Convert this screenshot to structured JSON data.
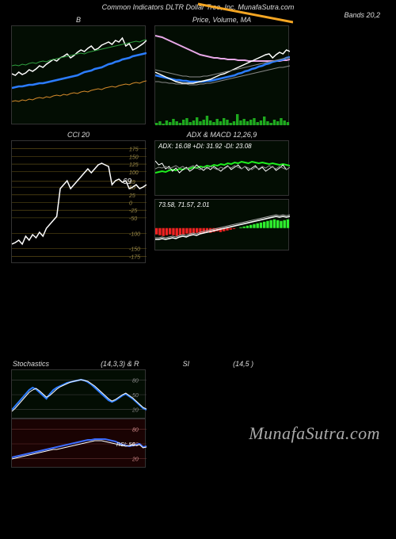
{
  "header": "Common Indicators DLTR Dollar Tree, Inc. MunafaSutra.com",
  "watermark": "MunafaSutra.com",
  "top_right_label": "Bands 20,2",
  "panels": {
    "b_panel": {
      "title": "B",
      "w": 170,
      "h": 125,
      "bg": "#030d03",
      "series": {
        "white": {
          "color": "#ffffff",
          "width": 1.5,
          "pts": [
            60,
            62,
            58,
            61,
            59,
            55,
            57,
            54,
            50,
            52,
            48,
            45,
            42,
            44,
            40,
            38,
            35,
            40,
            37,
            33,
            30,
            32,
            28,
            25,
            30,
            28,
            24,
            22,
            20,
            23,
            18,
            20,
            15,
            25,
            22,
            30,
            28,
            25,
            22,
            18
          ]
        },
        "blue": {
          "color": "#2b7cff",
          "width": 2.5,
          "pts": [
            78,
            77,
            76,
            76,
            75,
            74,
            74,
            73,
            72,
            72,
            71,
            70,
            69,
            68,
            67,
            66,
            65,
            64,
            63,
            62,
            60,
            58,
            57,
            56,
            54,
            53,
            52,
            50,
            48,
            47,
            45,
            44,
            42,
            41,
            40,
            38,
            37,
            36,
            35,
            34
          ]
        },
        "green": {
          "color": "#2e9e3e",
          "width": 1,
          "pts": [
            50,
            49,
            50,
            48,
            49,
            47,
            46,
            47,
            45,
            44,
            45,
            43,
            42,
            41,
            40,
            39,
            38,
            37,
            36,
            35,
            34,
            35,
            33,
            32,
            31,
            30,
            29,
            28,
            27,
            26,
            25,
            24,
            23,
            22,
            21,
            20,
            19,
            20,
            18,
            17
          ]
        },
        "orange": {
          "color": "#d48a2a",
          "width": 1,
          "pts": [
            95,
            94,
            95,
            93,
            94,
            92,
            93,
            91,
            90,
            91,
            89,
            90,
            88,
            87,
            88,
            86,
            87,
            85,
            84,
            85,
            83,
            82,
            83,
            81,
            80,
            79,
            80,
            78,
            77,
            76,
            77,
            75,
            74,
            73,
            74,
            72,
            71,
            72,
            70,
            69
          ]
        }
      }
    },
    "price_panel": {
      "title": "Price, Volume, MA",
      "w": 170,
      "h": 125,
      "bg": "#030d03",
      "series": {
        "pink": {
          "color": "#e8a8e8",
          "width": 2,
          "pts": [
            12,
            13,
            14,
            16,
            18,
            20,
            22,
            24,
            26,
            28,
            30,
            32,
            34,
            36,
            37,
            38,
            39,
            40,
            40,
            41,
            41,
            42,
            42,
            42,
            43,
            43,
            43,
            44,
            44,
            44,
            44,
            44,
            44,
            44,
            44,
            44,
            44,
            43,
            43,
            42
          ]
        },
        "blue": {
          "color": "#2b7cff",
          "width": 2.5,
          "pts": [
            62,
            63,
            64,
            65,
            66,
            67,
            68,
            68,
            69,
            69,
            70,
            70,
            70,
            70,
            70,
            69,
            69,
            68,
            67,
            66,
            65,
            64,
            63,
            62,
            60,
            59,
            57,
            56,
            54,
            53,
            51,
            50,
            48,
            47,
            45,
            44,
            43,
            42,
            40,
            39
          ]
        },
        "white": {
          "color": "#ffffff",
          "width": 1.5,
          "pts": [
            58,
            60,
            62,
            64,
            66,
            68,
            70,
            71,
            72,
            72,
            72,
            72,
            71,
            70,
            69,
            68,
            67,
            65,
            63,
            61,
            60,
            58,
            56,
            54,
            52,
            50,
            48,
            46,
            44,
            42,
            40,
            38,
            36,
            35,
            40,
            36,
            33,
            35,
            30,
            32
          ]
        },
        "gray1": {
          "color": "#888888",
          "width": 1,
          "pts": [
            55,
            56,
            57,
            58,
            59,
            60,
            61,
            62,
            63,
            63,
            64,
            64,
            64,
            64,
            63,
            63,
            62,
            61,
            60,
            59,
            58,
            57,
            56,
            55,
            54,
            53,
            52,
            51,
            50,
            49,
            48,
            47,
            46,
            45,
            44,
            43,
            42,
            41,
            40,
            40
          ]
        },
        "gray2": {
          "color": "#888888",
          "width": 1,
          "pts": [
            70,
            70,
            71,
            71,
            72,
            72,
            73,
            73,
            73,
            73,
            74,
            74,
            74,
            73,
            73,
            72,
            72,
            71,
            70,
            69,
            68,
            67,
            66,
            65,
            64,
            63,
            62,
            61,
            60,
            59,
            58,
            57,
            56,
            55,
            54,
            53,
            52,
            52,
            51,
            50
          ]
        }
      },
      "volume": {
        "color": "#1eaa1e",
        "max_h": 22,
        "bars": [
          3,
          5,
          2,
          6,
          4,
          8,
          5,
          3,
          7,
          9,
          4,
          6,
          10,
          5,
          7,
          12,
          6,
          4,
          8,
          5,
          9,
          7,
          3,
          5,
          14,
          6,
          8,
          5,
          7,
          9,
          4,
          6,
          11,
          5,
          3,
          7,
          5,
          9,
          6,
          4
        ]
      }
    },
    "cci_panel": {
      "title": "CCI 20",
      "w": 170,
      "h": 155,
      "bg": "#000000",
      "grid_color": "#6b5a1a",
      "grid_vals": [
        175,
        150,
        125,
        100,
        69,
        50,
        25,
        0,
        -25,
        -50,
        -100,
        -150,
        -175
      ],
      "value_label": "69",
      "series": {
        "white": {
          "color": "#ffffff",
          "width": 1.5,
          "pts": [
            130,
            128,
            125,
            130,
            120,
            125,
            118,
            122,
            115,
            120,
            110,
            105,
            100,
            95,
            60,
            55,
            50,
            60,
            55,
            50,
            45,
            40,
            35,
            40,
            35,
            30,
            28,
            30,
            32,
            55,
            50,
            48,
            52,
            50,
            60,
            58,
            55,
            60,
            58,
            55
          ]
        }
      }
    },
    "adx_panel": {
      "title": "ADX  & MACD 12,26,9",
      "inner_label": "ADX: 16.08  +DI: 31.92  -DI: 23.08",
      "w": 170,
      "h": 70,
      "bg": "#030d03",
      "series": {
        "green": {
          "color": "#1eee1e",
          "width": 2,
          "pts": [
            40,
            39,
            38,
            39,
            37,
            36,
            37,
            35,
            36,
            34,
            35,
            33,
            34,
            32,
            33,
            31,
            32,
            30,
            31,
            29,
            30,
            28,
            29,
            27,
            28,
            26,
            27,
            28,
            26,
            27,
            28,
            27,
            28,
            29,
            28,
            29,
            30,
            29,
            30,
            31
          ]
        },
        "white": {
          "color": "#ffffff",
          "width": 1,
          "pts": [
            25,
            30,
            28,
            35,
            32,
            38,
            34,
            40,
            36,
            33,
            38,
            35,
            30,
            34,
            37,
            33,
            36,
            32,
            35,
            38,
            34,
            31,
            36,
            33,
            30,
            35,
            32,
            37,
            34,
            31,
            36,
            33,
            38,
            35,
            32,
            37,
            34,
            30,
            36,
            33
          ]
        },
        "gray": {
          "color": "#888888",
          "width": 1,
          "pts": [
            35,
            33,
            34,
            32,
            35,
            33,
            31,
            34,
            32,
            35,
            33,
            31,
            34,
            36,
            33,
            35,
            32,
            34,
            36,
            33,
            35,
            32,
            34,
            31,
            33,
            35,
            32,
            34,
            36,
            33,
            35,
            32,
            34,
            31,
            33,
            35,
            32,
            34,
            36,
            33
          ]
        }
      }
    },
    "macd_panel": {
      "inner_label": "73.58, 71.57, 2.01",
      "w": 170,
      "h": 65,
      "bg": "#030d03",
      "hist": {
        "bars": [
          -8,
          -9,
          -10,
          -9,
          -8,
          -9,
          -10,
          -9,
          -8,
          -7,
          -8,
          -7,
          -6,
          -7,
          -6,
          -5,
          -6,
          -5,
          -4,
          -5,
          -4,
          -3,
          -2,
          -1,
          0,
          1,
          2,
          3,
          4,
          5,
          6,
          7,
          8,
          9,
          10,
          11,
          10,
          9,
          10,
          11
        ],
        "pos_color": "#2eee2e",
        "neg_color": "#ee2222"
      },
      "series": {
        "white": {
          "color": "#ffffff",
          "width": 1.5,
          "pts": [
            50,
            50,
            49,
            50,
            49,
            48,
            49,
            47,
            46,
            47,
            45,
            44,
            45,
            43,
            42,
            41,
            40,
            39,
            38,
            37,
            36,
            35,
            34,
            33,
            32,
            31,
            30,
            29,
            28,
            27,
            26,
            25,
            24,
            23,
            22,
            21,
            22,
            21,
            22,
            21
          ]
        },
        "gray": {
          "color": "#aaaaaa",
          "width": 1,
          "pts": [
            48,
            48,
            47,
            48,
            47,
            46,
            47,
            45,
            44,
            45,
            43,
            42,
            43,
            41,
            40,
            39,
            38,
            37,
            36,
            35,
            34,
            33,
            32,
            31,
            30,
            29,
            28,
            27,
            26,
            25,
            24,
            23,
            22,
            21,
            20,
            19,
            20,
            19,
            20,
            19
          ]
        }
      }
    },
    "stoch_panel": {
      "title_left": "Stochastics",
      "title_mid": "(14,3,3) & R",
      "title_mid2": "SI",
      "title_right": "(14,5                         )",
      "w": 170,
      "h": 62,
      "bg": "#030d03",
      "grid_color": "#444",
      "grid_vals": [
        80,
        50,
        20
      ],
      "series": {
        "blue": {
          "color": "#2b7cff",
          "width": 2,
          "pts": [
            50,
            45,
            40,
            35,
            30,
            25,
            22,
            24,
            28,
            32,
            36,
            30,
            25,
            22,
            20,
            18,
            16,
            15,
            14,
            13,
            12,
            13,
            15,
            18,
            22,
            26,
            30,
            34,
            38,
            40,
            38,
            35,
            32,
            30,
            33,
            36,
            40,
            44,
            48,
            50
          ]
        },
        "white": {
          "color": "#ffffff",
          "width": 1,
          "pts": [
            52,
            48,
            43,
            38,
            33,
            28,
            25,
            23,
            26,
            30,
            34,
            32,
            28,
            24,
            21,
            19,
            17,
            15,
            14,
            13,
            12,
            13,
            14,
            17,
            20,
            24,
            28,
            32,
            36,
            39,
            37,
            34,
            31,
            29,
            32,
            35,
            39,
            43,
            47,
            49
          ]
        }
      }
    },
    "rsi_panel": {
      "w": 170,
      "h": 62,
      "bg": "#1a0303",
      "grid_color": "#663333",
      "grid_vals": [
        80,
        50,
        20
      ],
      "label": "RSI: 50",
      "series": {
        "blue": {
          "color": "#3b6cff",
          "width": 2,
          "pts": [
            48,
            47,
            46,
            45,
            44,
            43,
            42,
            41,
            40,
            39,
            38,
            37,
            36,
            35,
            34,
            33,
            32,
            31,
            30,
            29,
            28,
            27,
            26,
            26,
            25,
            25,
            25,
            25,
            26,
            27,
            28,
            30,
            32,
            33,
            34,
            33,
            32,
            31,
            35,
            34
          ]
        },
        "white": {
          "color": "#ffffff",
          "width": 1,
          "pts": [
            50,
            49,
            48,
            47,
            46,
            45,
            44,
            43,
            42,
            41,
            40,
            39,
            38,
            38,
            37,
            36,
            35,
            34,
            33,
            32,
            31,
            30,
            29,
            28,
            27,
            27,
            27,
            28,
            29,
            30,
            31,
            32,
            33,
            34,
            33,
            32,
            33,
            32,
            36,
            35
          ]
        }
      }
    }
  }
}
